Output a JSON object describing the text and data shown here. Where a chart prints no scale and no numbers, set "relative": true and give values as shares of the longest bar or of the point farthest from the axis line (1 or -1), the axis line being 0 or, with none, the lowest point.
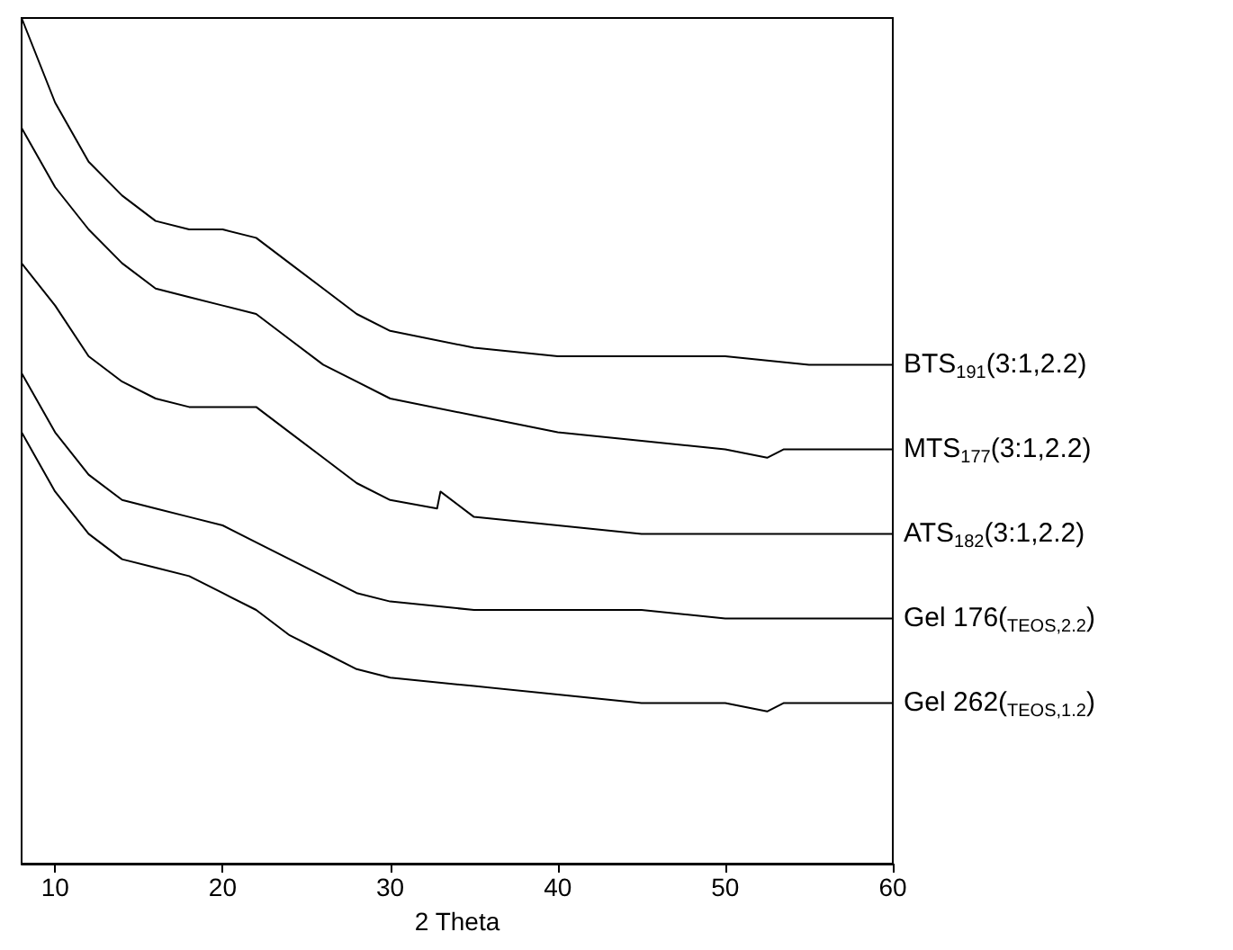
{
  "chart_data": {
    "type": "line",
    "relative": true,
    "xlabel": "2 Theta",
    "xlim": [
      8,
      60
    ],
    "xticks": [
      10,
      20,
      30,
      40,
      50,
      60
    ],
    "tick_labels": "x",
    "grid": false,
    "legend": false,
    "marker": "none",
    "line_style": "solid",
    "series": [
      {
        "name": "BTS$_{191}$(3:1,2.2)",
        "color": "#000000",
        "x": [
          8,
          10,
          12,
          14,
          16,
          18,
          20,
          22,
          24,
          26,
          28,
          30,
          35,
          40,
          45,
          50,
          55,
          60
        ],
        "values": [
          1.0,
          0.9,
          0.83,
          0.79,
          0.76,
          0.75,
          0.75,
          0.74,
          0.71,
          0.68,
          0.65,
          0.63,
          0.61,
          0.6,
          0.6,
          0.6,
          0.59,
          0.59
        ]
      },
      {
        "name": "MTS$_{177}$(3:1,2.2)",
        "color": "#000000",
        "x": [
          8,
          10,
          12,
          14,
          16,
          18,
          20,
          22,
          24,
          26,
          28,
          30,
          35,
          40,
          45,
          50,
          52.5,
          53.5,
          55,
          60
        ],
        "values": [
          0.87,
          0.8,
          0.75,
          0.71,
          0.68,
          0.67,
          0.66,
          0.65,
          0.62,
          0.59,
          0.57,
          0.55,
          0.53,
          0.51,
          0.5,
          0.49,
          0.48,
          0.49,
          0.49,
          0.49
        ]
      },
      {
        "name": "ATS$_{182}$(3:1,2.2)",
        "color": "#000000",
        "x": [
          8,
          10,
          12,
          14,
          16,
          18,
          20,
          22,
          24,
          26,
          28,
          30,
          32.8,
          33,
          35,
          40,
          45,
          50,
          55,
          60
        ],
        "values": [
          0.71,
          0.66,
          0.6,
          0.57,
          0.55,
          0.54,
          0.54,
          0.54,
          0.51,
          0.48,
          0.45,
          0.43,
          0.42,
          0.44,
          0.41,
          0.4,
          0.39,
          0.39,
          0.39,
          0.39
        ]
      },
      {
        "name": "Gel 176($_{TEOS,2.2}$)",
        "color": "#000000",
        "x": [
          8,
          10,
          12,
          14,
          16,
          18,
          20,
          22,
          24,
          26,
          28,
          30,
          35,
          40,
          45,
          50,
          55,
          60
        ],
        "values": [
          0.58,
          0.51,
          0.46,
          0.43,
          0.42,
          0.41,
          0.4,
          0.38,
          0.36,
          0.34,
          0.32,
          0.31,
          0.3,
          0.3,
          0.3,
          0.29,
          0.29,
          0.29
        ]
      },
      {
        "name": "Gel 262($_{TEOS,1.2}$)",
        "color": "#000000",
        "x": [
          8,
          10,
          12,
          14,
          16,
          18,
          20,
          22,
          24,
          26,
          28,
          30,
          35,
          40,
          45,
          50,
          52.5,
          53.5,
          55,
          60
        ],
        "values": [
          0.51,
          0.44,
          0.39,
          0.36,
          0.35,
          0.34,
          0.32,
          0.3,
          0.27,
          0.25,
          0.23,
          0.22,
          0.21,
          0.2,
          0.19,
          0.19,
          0.18,
          0.19,
          0.19,
          0.19
        ]
      }
    ]
  }
}
